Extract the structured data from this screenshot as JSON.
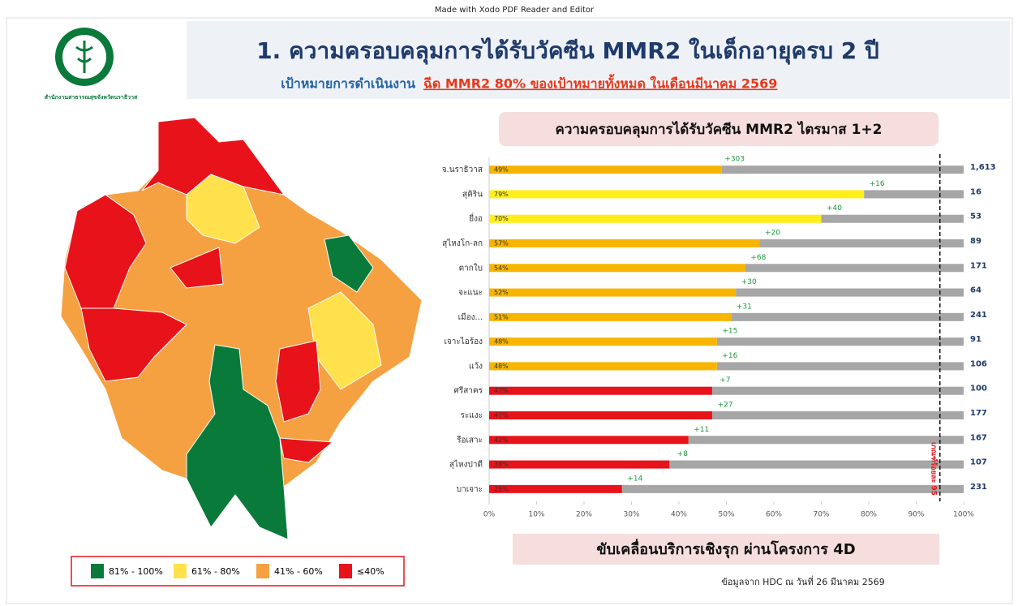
{
  "watermark": "Made with Xodo PDF Reader and Editor",
  "header": {
    "title": "1. ความครอบคลุมการได้รับวัคซีน MMR2 ในเด็กอายุครบ 2 ปี",
    "goal_label": "เป้าหมายการดำเนินงาน",
    "goal": "ฉีด MMR2 80% ของเป้าหมายทั้งหมด ในเดือนมีนาคม 2569",
    "org": "สำนักงานสาธารณสุขจังหวัดนราธิวาส"
  },
  "map_legend": [
    {
      "label": "81% - 100%",
      "color": "#0a7a3a"
    },
    {
      "label": "61% - 80%",
      "color": "#ffe14d"
    },
    {
      "label": "41% - 60%",
      "color": "#f5a142"
    },
    {
      "label": "≤40%",
      "color": "#e8131a"
    }
  ],
  "chart_data": {
    "type": "bar",
    "orientation": "horizontal",
    "title": "ความครอบคลุมการได้รับวัคซีน MMR2 ไตรมาส 1+2",
    "categories": [
      "จ.นราธิวาส",
      "สุคิริน",
      "ยี่งอ",
      "สุไหงโก-ลก",
      "ตากใบ",
      "จะแนะ",
      "เมือง...",
      "เจาะไอร้อง",
      "แว้ง",
      "ศรีสาคร",
      "ระแงะ",
      "รือเสาะ",
      "สุไหงปาดี",
      "บาเจาะ"
    ],
    "values": [
      49,
      79,
      70,
      57,
      54,
      52,
      51,
      48,
      48,
      47,
      47,
      42,
      38,
      28
    ],
    "value_labels": [
      "49%",
      "79%",
      "70%",
      "57%",
      "54%",
      "52%",
      "51%",
      "48%",
      "48%",
      "47%",
      "47%",
      "42%",
      "38%",
      "28%"
    ],
    "colors": [
      "#f7b500",
      "#ffee1a",
      "#ffee1a",
      "#f7b500",
      "#f7b500",
      "#f7b500",
      "#f7b500",
      "#f7b500",
      "#f7b500",
      "#e8131a",
      "#e8131a",
      "#e8131a",
      "#e8131a",
      "#e8131a"
    ],
    "remainder_color": "#a6a6a6",
    "increments": [
      "+303",
      "+16",
      "+40",
      "+20",
      "+68",
      "+30",
      "+31",
      "+15",
      "+16",
      "+7",
      "+27",
      "+11",
      "+8",
      "+14"
    ],
    "targets": [
      "1,613",
      "16",
      "53",
      "89",
      "171",
      "64",
      "241",
      "91",
      "106",
      "100",
      "177",
      "167",
      "107",
      "231"
    ],
    "xlim": [
      0,
      100
    ],
    "xticks": [
      {
        "value": 0,
        "label": "0%"
      },
      {
        "value": 10,
        "label": "10%"
      },
      {
        "value": 20,
        "label": "20%"
      },
      {
        "value": 30,
        "label": "30%"
      },
      {
        "value": 40,
        "label": "40%"
      },
      {
        "value": 50,
        "label": "50%"
      },
      {
        "value": 60,
        "label": "60%"
      },
      {
        "value": 70,
        "label": "70%"
      },
      {
        "value": 80,
        "label": "80%"
      },
      {
        "value": 90,
        "label": "90%"
      },
      {
        "value": 100,
        "label": "100%"
      }
    ],
    "threshold": {
      "value": 95,
      "label": "เกณฑ์ร้อยละ 95"
    }
  },
  "footer": {
    "slogan": "ขับเคลื่อนบริการเชิงรุก ผ่านโครงการ 4D",
    "source": "ข้อมูลจาก HDC ณ วันที่ 26 มีนาคม 2569"
  }
}
